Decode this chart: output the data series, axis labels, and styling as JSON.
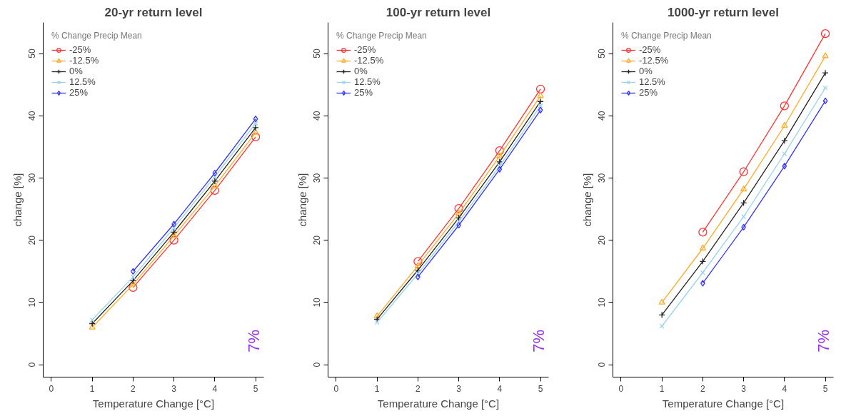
{
  "chart_data": [
    {
      "type": "line",
      "title": "20-yr return level",
      "xlabel": "Temperature Change [°C]",
      "ylabel": "change [%]",
      "legend_title": "% Change Precip Mean",
      "x": [
        1,
        2,
        3,
        4,
        5
      ],
      "xlim": [
        -0.2,
        5.2
      ],
      "ylim": [
        -2,
        55
      ],
      "xticks": [
        0,
        1,
        2,
        3,
        4,
        5
      ],
      "yticks": [
        0,
        10,
        20,
        30,
        40,
        50
      ],
      "grid": false,
      "legend": "top left",
      "annotations": [
        "7%"
      ],
      "series": [
        {
          "name": "-25%",
          "color": "#ff3333",
          "marker": "circle",
          "values": [
            null,
            12.4,
            20.0,
            28.0,
            36.6
          ]
        },
        {
          "name": "-12.5%",
          "color": "#ffaa22",
          "marker": "triangle",
          "values": [
            6.0,
            12.9,
            20.7,
            28.7,
            37.3
          ]
        },
        {
          "name": "0%",
          "color": "#222222",
          "marker": "cross",
          "values": [
            6.6,
            13.5,
            21.3,
            29.5,
            38.1
          ]
        },
        {
          "name": "12.5%",
          "color": "#99d4f0",
          "marker": "x",
          "values": [
            7.2,
            14.1,
            22.0,
            30.2,
            38.8
          ]
        },
        {
          "name": "25%",
          "color": "#3333ff",
          "marker": "diamond",
          "values": [
            null,
            15.0,
            22.6,
            30.8,
            39.5
          ]
        }
      ]
    },
    {
      "type": "line",
      "title": "100-yr return level",
      "xlabel": "Temperature Change [°C]",
      "ylabel": "change [%]",
      "legend_title": "% Change Precip Mean",
      "x": [
        1,
        2,
        3,
        4,
        5
      ],
      "xlim": [
        -0.2,
        5.2
      ],
      "ylim": [
        -2,
        55
      ],
      "xticks": [
        0,
        1,
        2,
        3,
        4,
        5
      ],
      "yticks": [
        0,
        10,
        20,
        30,
        40,
        50
      ],
      "grid": false,
      "legend": "top left",
      "annotations": [
        "7%"
      ],
      "series": [
        {
          "name": "-25%",
          "color": "#ff3333",
          "marker": "circle",
          "values": [
            null,
            16.6,
            25.1,
            34.4,
            44.3
          ]
        },
        {
          "name": "-12.5%",
          "color": "#ffaa22",
          "marker": "triangle",
          "values": [
            7.8,
            15.9,
            24.3,
            33.5,
            43.2
          ]
        },
        {
          "name": "0%",
          "color": "#222222",
          "marker": "cross",
          "values": [
            7.3,
            15.2,
            23.6,
            32.6,
            42.3
          ]
        },
        {
          "name": "12.5%",
          "color": "#99d4f0",
          "marker": "x",
          "values": [
            6.8,
            14.6,
            23.0,
            31.9,
            41.6
          ]
        },
        {
          "name": "25%",
          "color": "#3333ff",
          "marker": "diamond",
          "values": [
            null,
            14.1,
            22.4,
            31.4,
            40.9
          ]
        }
      ]
    },
    {
      "type": "line",
      "title": "1000-yr return level",
      "xlabel": "Temperature Change [°C]",
      "ylabel": "change [%]",
      "legend_title": "% Change Precip Mean",
      "x": [
        1,
        2,
        3,
        4,
        5
      ],
      "xlim": [
        -0.2,
        5.2
      ],
      "ylim": [
        -2,
        55
      ],
      "xticks": [
        0,
        1,
        2,
        3,
        4,
        5
      ],
      "yticks": [
        0,
        10,
        20,
        30,
        40,
        50
      ],
      "grid": false,
      "legend": "top left",
      "annotations": [
        "7%"
      ],
      "series": [
        {
          "name": "-25%",
          "color": "#ff3333",
          "marker": "circle",
          "values": [
            null,
            21.3,
            31.0,
            41.6,
            53.2
          ]
        },
        {
          "name": "-12.5%",
          "color": "#ffaa22",
          "marker": "triangle",
          "values": [
            10.0,
            18.7,
            28.2,
            38.4,
            49.6
          ]
        },
        {
          "name": "0%",
          "color": "#222222",
          "marker": "cross",
          "values": [
            8.0,
            16.6,
            26.0,
            36.0,
            46.9
          ]
        },
        {
          "name": "12.5%",
          "color": "#99d4f0",
          "marker": "x",
          "values": [
            6.2,
            14.8,
            23.8,
            33.9,
            44.5
          ]
        },
        {
          "name": "25%",
          "color": "#3333ff",
          "marker": "diamond",
          "values": [
            null,
            13.1,
            22.1,
            31.9,
            42.4
          ]
        }
      ]
    }
  ]
}
